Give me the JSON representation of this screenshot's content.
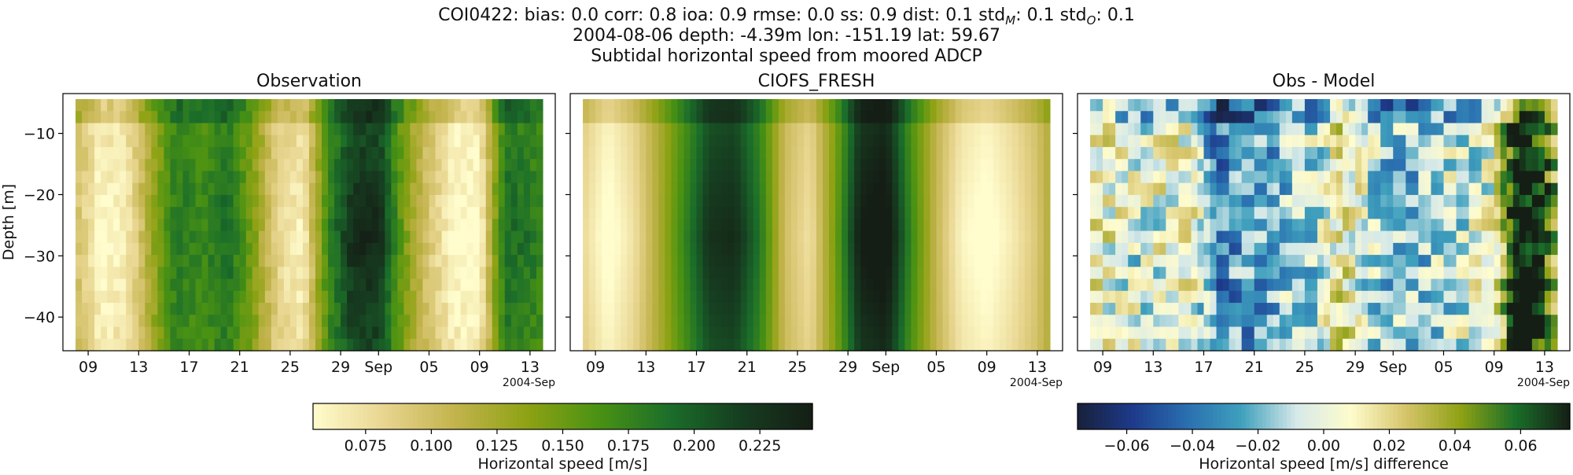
{
  "title": {
    "line1_id": "COI0422",
    "line1_stats": [
      {
        "key": "bias",
        "sub": "",
        "value": "0.0"
      },
      {
        "key": "corr",
        "sub": "",
        "value": "0.8"
      },
      {
        "key": "ioa",
        "sub": "",
        "value": "0.9"
      },
      {
        "key": "rmse",
        "sub": "",
        "value": "0.0"
      },
      {
        "key": "ss",
        "sub": "",
        "value": "0.9"
      },
      {
        "key": "dist",
        "sub": "",
        "value": "0.1"
      },
      {
        "key": "std",
        "sub": "M",
        "value": "0.1"
      },
      {
        "key": "std",
        "sub": "O",
        "value": "0.1"
      }
    ],
    "line2": "2004-08-06 depth: -4.39m lon: -151.19 lat: 59.67",
    "line3": "Subtidal horizontal speed from moored ADCP"
  },
  "colors": {
    "speed_cmap": [
      "#fffccd",
      "#e8d58f",
      "#c2b34c",
      "#8ea214",
      "#4a9213",
      "#1b6e2a",
      "#163d20",
      "#151e15"
    ],
    "diff_cmap": [
      "#18203a",
      "#1d3a8a",
      "#2a6fb0",
      "#3fa0bd",
      "#d6e9e8",
      "#fffccd",
      "#d6c46a",
      "#8ea214",
      "#1b6e2a",
      "#151e15"
    ]
  },
  "chart_data": [
    {
      "type": "heatmap",
      "title": "Observation",
      "ylabel": "Depth [m]",
      "xlabel": "",
      "x_tick_labels": [
        "09",
        "13",
        "17",
        "21",
        "25",
        "29",
        "Sep",
        "05",
        "09",
        "13"
      ],
      "x_offset_label": "2004-Sep",
      "y_ticks": [
        -10,
        -20,
        -30,
        -40
      ],
      "ylim": [
        -45.5,
        -3.5
      ],
      "xlim": [
        "2004-08-07",
        "2004-09-15"
      ],
      "data_span": [
        "2004-08-08",
        "2004-09-14"
      ],
      "depth_bins": 21,
      "value_range": [
        0.055,
        0.245
      ],
      "colorbar": {
        "label": "Horizontal speed [m/s]",
        "ticks": [
          "0.075",
          "0.100",
          "0.125",
          "0.150",
          "0.175",
          "0.200",
          "0.225"
        ],
        "tick_values": [
          0.075,
          0.1,
          0.125,
          0.15,
          0.175,
          0.2,
          0.225
        ]
      },
      "day_profile": [
        {
          "date": "2004-08-08",
          "speed": 0.105
        },
        {
          "date": "2004-08-10",
          "speed": 0.07
        },
        {
          "date": "2004-08-12",
          "speed": 0.078
        },
        {
          "date": "2004-08-14",
          "speed": 0.125
        },
        {
          "date": "2004-08-16",
          "speed": 0.17
        },
        {
          "date": "2004-08-18",
          "speed": 0.16
        },
        {
          "date": "2004-08-20",
          "speed": 0.175
        },
        {
          "date": "2004-08-22",
          "speed": 0.14
        },
        {
          "date": "2004-08-24",
          "speed": 0.09
        },
        {
          "date": "2004-08-26",
          "speed": 0.075
        },
        {
          "date": "2004-08-28",
          "speed": 0.16
        },
        {
          "date": "2004-08-30",
          "speed": 0.205
        },
        {
          "date": "2004-09-01",
          "speed": 0.205
        },
        {
          "date": "2004-09-03",
          "speed": 0.14
        },
        {
          "date": "2004-09-05",
          "speed": 0.1
        },
        {
          "date": "2004-09-07",
          "speed": 0.07
        },
        {
          "date": "2004-09-09",
          "speed": 0.07
        },
        {
          "date": "2004-09-11",
          "speed": 0.175
        },
        {
          "date": "2004-09-13",
          "speed": 0.17
        },
        {
          "date": "2004-09-14",
          "speed": 0.16
        }
      ]
    },
    {
      "type": "heatmap",
      "title": "CIOFS_FRESH",
      "xlabel": "",
      "x_tick_labels": [
        "09",
        "13",
        "17",
        "21",
        "25",
        "29",
        "Sep",
        "05",
        "09",
        "13"
      ],
      "x_offset_label": "2004-Sep",
      "y_ticks": [
        -10,
        -20,
        -30,
        -40
      ],
      "ylim": [
        -45.5,
        -3.5
      ],
      "xlim": [
        "2004-08-07",
        "2004-09-15"
      ],
      "data_span": [
        "2004-08-08",
        "2004-09-14"
      ],
      "depth_bins": 21,
      "value_range": [
        0.055,
        0.245
      ],
      "day_profile": [
        {
          "date": "2004-08-08",
          "speed": 0.09
        },
        {
          "date": "2004-08-10",
          "speed": 0.065
        },
        {
          "date": "2004-08-12",
          "speed": 0.085
        },
        {
          "date": "2004-08-14",
          "speed": 0.12
        },
        {
          "date": "2004-08-16",
          "speed": 0.16
        },
        {
          "date": "2004-08-18",
          "speed": 0.2
        },
        {
          "date": "2004-08-20",
          "speed": 0.205
        },
        {
          "date": "2004-08-22",
          "speed": 0.17
        },
        {
          "date": "2004-08-24",
          "speed": 0.105
        },
        {
          "date": "2004-08-26",
          "speed": 0.085
        },
        {
          "date": "2004-08-28",
          "speed": 0.14
        },
        {
          "date": "2004-08-30",
          "speed": 0.215
        },
        {
          "date": "2004-09-01",
          "speed": 0.225
        },
        {
          "date": "2004-09-03",
          "speed": 0.16
        },
        {
          "date": "2004-09-05",
          "speed": 0.11
        },
        {
          "date": "2004-09-07",
          "speed": 0.075
        },
        {
          "date": "2004-09-09",
          "speed": 0.065
        },
        {
          "date": "2004-09-11",
          "speed": 0.08
        },
        {
          "date": "2004-09-13",
          "speed": 0.1
        },
        {
          "date": "2004-09-14",
          "speed": 0.12
        }
      ]
    },
    {
      "type": "heatmap",
      "title": "Obs - Model",
      "xlabel": "",
      "x_tick_labels": [
        "09",
        "13",
        "17",
        "21",
        "25",
        "29",
        "Sep",
        "05",
        "09",
        "13"
      ],
      "x_offset_label": "2004-Sep",
      "y_ticks": [
        -10,
        -20,
        -30,
        -40
      ],
      "ylim": [
        -45.5,
        -3.5
      ],
      "xlim": [
        "2004-08-07",
        "2004-09-15"
      ],
      "data_span": [
        "2004-08-08",
        "2004-09-14"
      ],
      "depth_bins": 21,
      "value_range": [
        -0.075,
        0.075
      ],
      "colorbar": {
        "label": "Horizontal speed [m/s] difference",
        "ticks": [
          "−0.06",
          "−0.04",
          "−0.02",
          "0.00",
          "0.02",
          "0.04",
          "0.06"
        ],
        "tick_values": [
          -0.06,
          -0.04,
          -0.02,
          0.0,
          0.02,
          0.04,
          0.06
        ]
      }
    }
  ]
}
